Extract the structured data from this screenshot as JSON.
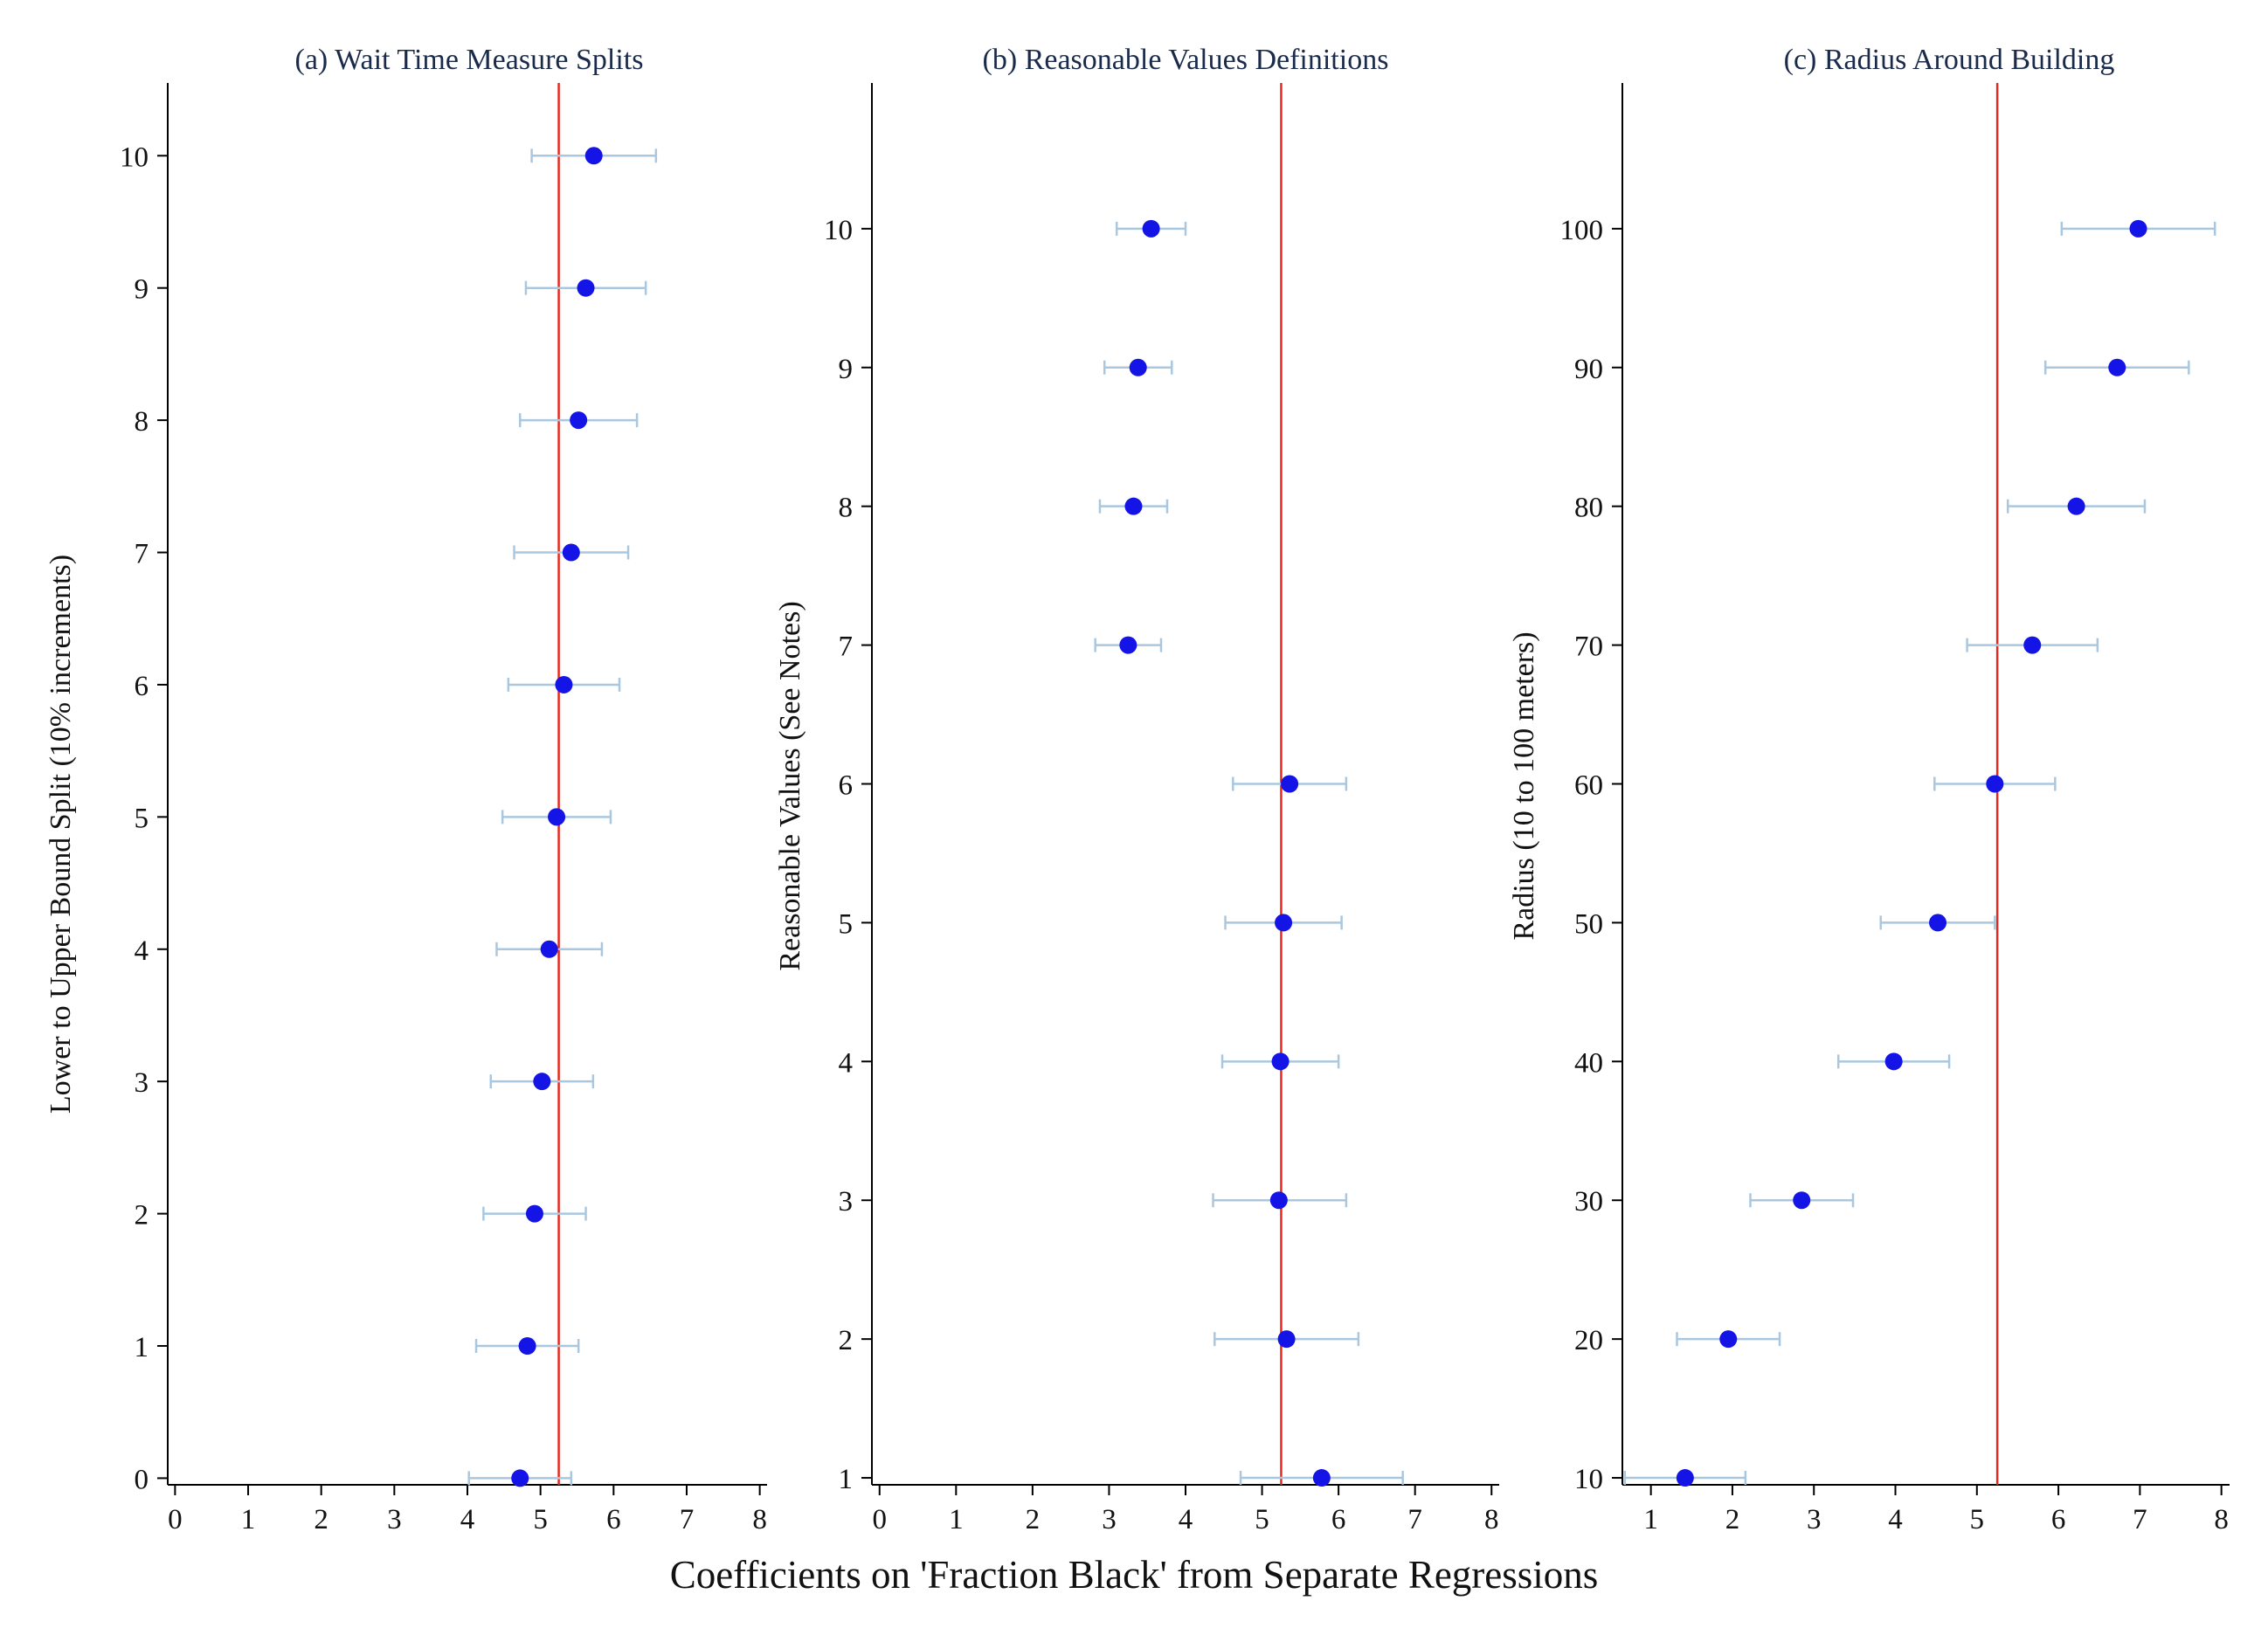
{
  "global_xlabel": "Coefficients on 'Fraction Black' from Separate Regressions",
  "colors": {
    "point": "#1414e6",
    "ci": "#a9c8e0",
    "reference_line": "#e8281e",
    "axis": "#000000",
    "title": "#1a2a4a"
  },
  "chart_data": [
    {
      "type": "scatter",
      "subtype": "coefficient-plot-with-error-bars",
      "title": "(a) Wait Time Measure Splits",
      "ylabel": "Lower to Upper Bound Split (10% increments)",
      "xlabel": "",
      "xlim": [
        -0.1,
        8.1
      ],
      "ylim": [
        -0.05,
        10.55
      ],
      "xticks": [
        0,
        1,
        2,
        3,
        4,
        5,
        6,
        7,
        8
      ],
      "xtick_labels": [
        "0",
        "1",
        "2",
        "3",
        "4",
        "5",
        "6",
        "7",
        "8"
      ],
      "yticks": [
        0,
        1,
        2,
        3,
        4,
        5,
        6,
        7,
        8,
        9,
        10
      ],
      "ytick_labels": [
        "0",
        "1",
        "2",
        "3",
        "4",
        "5",
        "6",
        "7",
        "8",
        "9",
        "10"
      ],
      "reference_line_x": 5.25,
      "points": [
        {
          "y": 0,
          "x": 4.72,
          "lo": 4.02,
          "hi": 5.42
        },
        {
          "y": 1,
          "x": 4.82,
          "lo": 4.12,
          "hi": 5.52
        },
        {
          "y": 2,
          "x": 4.92,
          "lo": 4.22,
          "hi": 5.62
        },
        {
          "y": 3,
          "x": 5.02,
          "lo": 4.32,
          "hi": 5.72
        },
        {
          "y": 4,
          "x": 5.12,
          "lo": 4.4,
          "hi": 5.84
        },
        {
          "y": 5,
          "x": 5.22,
          "lo": 4.48,
          "hi": 5.96
        },
        {
          "y": 6,
          "x": 5.32,
          "lo": 4.56,
          "hi": 6.08
        },
        {
          "y": 7,
          "x": 5.42,
          "lo": 4.64,
          "hi": 6.2
        },
        {
          "y": 8,
          "x": 5.52,
          "lo": 4.72,
          "hi": 6.32
        },
        {
          "y": 9,
          "x": 5.62,
          "lo": 4.8,
          "hi": 6.44
        },
        {
          "y": 10,
          "x": 5.73,
          "lo": 4.88,
          "hi": 6.58
        }
      ]
    },
    {
      "type": "scatter",
      "subtype": "coefficient-plot-with-error-bars",
      "title": "(b) Reasonable Values Definitions",
      "ylabel": "Reasonable Values (See Notes)",
      "xlabel": "",
      "xlim": [
        -0.1,
        8.1
      ],
      "ylim": [
        0.95,
        11.05
      ],
      "xticks": [
        0,
        1,
        2,
        3,
        4,
        5,
        6,
        7,
        8
      ],
      "xtick_labels": [
        "0",
        "1",
        "2",
        "3",
        "4",
        "5",
        "6",
        "7",
        "8"
      ],
      "yticks": [
        1,
        2,
        3,
        4,
        5,
        6,
        7,
        8,
        9,
        10
      ],
      "ytick_labels": [
        "1",
        "2",
        "3",
        "4",
        "5",
        "6",
        "7",
        "8",
        "9",
        "10"
      ],
      "reference_line_x": 5.25,
      "points": [
        {
          "y": 1,
          "x": 5.78,
          "lo": 4.72,
          "hi": 6.84
        },
        {
          "y": 2,
          "x": 5.32,
          "lo": 4.38,
          "hi": 6.26
        },
        {
          "y": 3,
          "x": 5.22,
          "lo": 4.36,
          "hi": 6.1
        },
        {
          "y": 4,
          "x": 5.24,
          "lo": 4.48,
          "hi": 6.0
        },
        {
          "y": 5,
          "x": 5.28,
          "lo": 4.52,
          "hi": 6.04
        },
        {
          "y": 6,
          "x": 5.36,
          "lo": 4.62,
          "hi": 6.1
        },
        {
          "y": 7,
          "x": 3.25,
          "lo": 2.82,
          "hi": 3.68
        },
        {
          "y": 8,
          "x": 3.32,
          "lo": 2.88,
          "hi": 3.76
        },
        {
          "y": 9,
          "x": 3.38,
          "lo": 2.94,
          "hi": 3.82
        },
        {
          "y": 10,
          "x": 3.55,
          "lo": 3.1,
          "hi": 4.0
        }
      ]
    },
    {
      "type": "scatter",
      "subtype": "coefficient-plot-with-error-bars",
      "title": "(c) Radius Around Building",
      "ylabel": "Radius (10 to 100 meters)",
      "xlabel": "",
      "xlim": [
        0.65,
        8.1
      ],
      "ylim": [
        9.5,
        110.5
      ],
      "xticks": [
        1,
        2,
        3,
        4,
        5,
        6,
        7,
        8
      ],
      "xtick_labels": [
        "1",
        "2",
        "3",
        "4",
        "5",
        "6",
        "7",
        "8"
      ],
      "yticks": [
        10,
        20,
        30,
        40,
        50,
        60,
        70,
        80,
        90,
        100
      ],
      "ytick_labels": [
        "10",
        "20",
        "30",
        "40",
        "50",
        "60",
        "70",
        "80",
        "90",
        "100"
      ],
      "reference_line_x": 5.25,
      "points": [
        {
          "y": 10,
          "x": 1.42,
          "lo": 0.68,
          "hi": 2.16
        },
        {
          "y": 20,
          "x": 1.95,
          "lo": 1.32,
          "hi": 2.58
        },
        {
          "y": 30,
          "x": 2.85,
          "lo": 2.22,
          "hi": 3.48
        },
        {
          "y": 40,
          "x": 3.98,
          "lo": 3.3,
          "hi": 4.66
        },
        {
          "y": 50,
          "x": 4.52,
          "lo": 3.82,
          "hi": 5.22
        },
        {
          "y": 60,
          "x": 5.22,
          "lo": 4.48,
          "hi": 5.96
        },
        {
          "y": 70,
          "x": 5.68,
          "lo": 4.88,
          "hi": 6.48
        },
        {
          "y": 80,
          "x": 6.22,
          "lo": 5.38,
          "hi": 7.06
        },
        {
          "y": 90,
          "x": 6.72,
          "lo": 5.84,
          "hi": 7.6
        },
        {
          "y": 100,
          "x": 6.98,
          "lo": 6.04,
          "hi": 7.92
        }
      ]
    }
  ]
}
